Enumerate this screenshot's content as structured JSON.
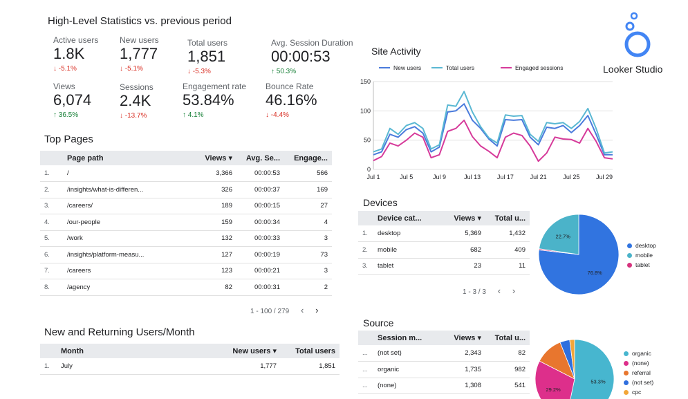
{
  "stats": {
    "title": "High-Level Statistics vs. previous period",
    "kpis": [
      {
        "label": "Active users",
        "value": "1.8K",
        "delta": "↓ -5.1%",
        "dir": "down"
      },
      {
        "label": "New users",
        "value": "1,777",
        "delta": "↓ -5.1%",
        "dir": "down"
      },
      {
        "label": "Total users",
        "value": "1,851",
        "delta": "↓ -5.3%",
        "dir": "down"
      },
      {
        "label": "Avg. Session Duration",
        "value": "00:00:53",
        "delta": "↑ 50.3%",
        "dir": "up"
      },
      {
        "label": "Views",
        "value": "6,074",
        "delta": "↑ 36.5%",
        "dir": "up"
      },
      {
        "label": "Sessions",
        "value": "2.4K",
        "delta": "↓ -13.7%",
        "dir": "down"
      },
      {
        "label": "Engagement rate",
        "value": "53.84%",
        "delta": "↑ 4.1%",
        "dir": "up"
      },
      {
        "label": "Bounce Rate",
        "value": "46.16%",
        "delta": "↓ -4.4%",
        "dir": "down"
      }
    ]
  },
  "brand": {
    "name": "Looker Studio",
    "color": "#4285f4"
  },
  "colors": {
    "new_users": "#4a7bdc",
    "total_users": "#5ab8d3",
    "engaged": "#d63a9a",
    "desktop": "#3174e0",
    "mobile": "#4bb3c9",
    "tablet": "#d6337e",
    "organic": "#47b6cf",
    "none": "#dd2f8b",
    "referral": "#e8762e",
    "not_set": "#2f6fde",
    "cpc": "#f2a638",
    "down": "#d93025",
    "up": "#188038",
    "header_bg": "#e8eaed"
  },
  "top_pages": {
    "title": "Top Pages",
    "headers": [
      "Page path",
      "Views ▾",
      "Avg. Se...",
      "Engage..."
    ],
    "rows": [
      [
        "1.",
        "/",
        "3,366",
        "00:00:53",
        "566"
      ],
      [
        "2.",
        "/insights/what-is-differen...",
        "326",
        "00:00:37",
        "169"
      ],
      [
        "3.",
        "/careers/",
        "189",
        "00:00:15",
        "27"
      ],
      [
        "4.",
        "/our-people",
        "159",
        "00:00:34",
        "4"
      ],
      [
        "5.",
        "/work",
        "132",
        "00:00:33",
        "3"
      ],
      [
        "6.",
        "/insights/platform-measu...",
        "127",
        "00:00:19",
        "73"
      ],
      [
        "7.",
        "/careers",
        "123",
        "00:00:21",
        "3"
      ],
      [
        "8.",
        "/agency",
        "82",
        "00:00:31",
        "2"
      ]
    ],
    "pager": "1 - 100 / 279",
    "prev": "‹",
    "next": "›"
  },
  "nr_users": {
    "title": "New and Returning Users/Month",
    "headers": [
      "Month",
      "New users ▾",
      "Total users"
    ],
    "rows": [
      [
        "1.",
        "July",
        "1,777",
        "1,851"
      ]
    ]
  },
  "site_activity": {
    "title": "Site Activity",
    "legend": [
      "New users",
      "Total users",
      "Engaged sessions"
    ]
  },
  "devices": {
    "title": "Devices",
    "headers": [
      "Device cat...",
      "Views ▾",
      "Total u..."
    ],
    "rows": [
      [
        "1.",
        "desktop",
        "5,369",
        "1,432"
      ],
      [
        "2.",
        "mobile",
        "682",
        "409"
      ],
      [
        "3.",
        "tablet",
        "23",
        "11"
      ]
    ],
    "pager": "1 - 3 / 3",
    "prev": "‹",
    "next": "›",
    "legend": [
      "desktop",
      "mobile",
      "tablet"
    ],
    "pie_labels": [
      "76.8%",
      "22.7%"
    ]
  },
  "source": {
    "title": "Source",
    "headers": [
      "Session m...",
      "Views ▾",
      "Total u..."
    ],
    "rows": [
      [
        "...",
        "(not set)",
        "2,343",
        "82"
      ],
      [
        "...",
        "organic",
        "1,735",
        "982"
      ],
      [
        "...",
        "(none)",
        "1,308",
        "541"
      ]
    ],
    "legend": [
      "organic",
      "(none)",
      "referral",
      "(not set)",
      "cpc"
    ],
    "pie_labels": [
      "53.3%",
      "29.2%"
    ]
  },
  "chart_data": [
    {
      "type": "line",
      "title": "Site Activity",
      "x": [
        "Jul 1",
        "Jul 2",
        "Jul 3",
        "Jul 4",
        "Jul 5",
        "Jul 6",
        "Jul 7",
        "Jul 8",
        "Jul 9",
        "Jul 10",
        "Jul 11",
        "Jul 12",
        "Jul 13",
        "Jul 14",
        "Jul 15",
        "Jul 16",
        "Jul 17",
        "Jul 18",
        "Jul 19",
        "Jul 20",
        "Jul 21",
        "Jul 22",
        "Jul 23",
        "Jul 24",
        "Jul 25",
        "Jul 26",
        "Jul 27",
        "Jul 28",
        "Jul 29",
        "Jul 30"
      ],
      "xticks": [
        "Jul 1",
        "Jul 5",
        "Jul 9",
        "Jul 13",
        "Jul 17",
        "Jul 21",
        "Jul 25",
        "Jul 29"
      ],
      "yticks": [
        0,
        50,
        100,
        150
      ],
      "ylim": [
        0,
        150
      ],
      "grid": true,
      "legend_position": "top",
      "series": [
        {
          "name": "New users",
          "values": [
            25,
            30,
            60,
            55,
            68,
            73,
            62,
            30,
            38,
            98,
            100,
            112,
            84,
            70,
            52,
            40,
            85,
            84,
            85,
            55,
            42,
            72,
            70,
            75,
            63,
            75,
            92,
            60,
            25,
            25
          ]
        },
        {
          "name": "Total users",
          "values": [
            30,
            35,
            70,
            60,
            75,
            80,
            70,
            35,
            42,
            110,
            108,
            133,
            98,
            73,
            54,
            45,
            93,
            91,
            92,
            60,
            48,
            80,
            78,
            80,
            70,
            82,
            104,
            70,
            28,
            30
          ]
        },
        {
          "name": "Engaged sessions",
          "values": [
            15,
            22,
            45,
            40,
            50,
            62,
            55,
            20,
            25,
            65,
            70,
            84,
            56,
            40,
            31,
            20,
            55,
            62,
            58,
            40,
            14,
            28,
            55,
            52,
            51,
            45,
            70,
            48,
            20,
            18
          ]
        }
      ]
    },
    {
      "type": "pie",
      "title": "Devices",
      "labels": [
        "desktop",
        "mobile",
        "tablet"
      ],
      "values": [
        76.8,
        22.7,
        0.5
      ]
    },
    {
      "type": "pie",
      "title": "Source",
      "labels": [
        "organic",
        "(none)",
        "referral",
        "(not set)",
        "cpc"
      ],
      "values": [
        53.3,
        29.2,
        11.5,
        4.0,
        2.0
      ]
    }
  ]
}
